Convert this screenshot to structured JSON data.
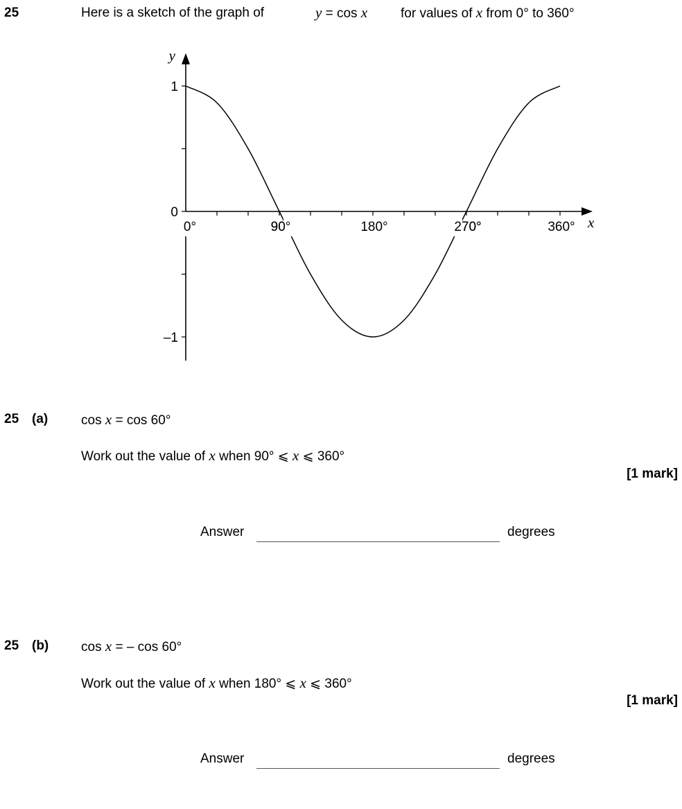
{
  "question": {
    "number": "25",
    "intro_text": "Here is a sketch of the graph of",
    "equation_lhs": "y",
    "equation_mid": " = cos ",
    "equation_var": "x",
    "range_text_pre": "for values of",
    "range_var": "x",
    "range_text_post": "from 0° to 360°"
  },
  "chart_data": {
    "type": "line",
    "function": "y = cos x",
    "x": [
      0,
      30,
      60,
      90,
      120,
      150,
      180,
      210,
      240,
      270,
      300,
      330,
      360
    ],
    "series": [
      {
        "values": [
          1,
          0.866,
          0.5,
          0,
          -0.5,
          -0.866,
          -1,
          -0.866,
          -0.5,
          0,
          0.5,
          0.866,
          1
        ]
      }
    ],
    "xlabel": "x",
    "ylabel": "y",
    "xlim": [
      0,
      390
    ],
    "ylim": [
      -1.2,
      1.25
    ],
    "x_tick_labels": [
      "0°",
      "90°",
      "180°",
      "270°",
      "360°"
    ],
    "y_tick_labels": [
      "1",
      "0",
      "–1"
    ],
    "grid": false
  },
  "part_a": {
    "label_number": "25",
    "label_part": "(a)",
    "equation_pre": "cos ",
    "equation_var": "x",
    "equation_post": " = cos 60°",
    "instruction_pre": "Work out the value of ",
    "instruction_var": "x",
    "instruction_mid": " when  90° ⩽ ",
    "instruction_var2": "x",
    "instruction_post": " ⩽ 360°",
    "marks": "[1 mark]",
    "answer_label": "Answer",
    "answer_unit": "degrees"
  },
  "part_b": {
    "label_number": "25",
    "label_part": "(b)",
    "equation_pre": "cos ",
    "equation_var": "x",
    "equation_post": " = – cos 60°",
    "instruction_pre": "Work out the value of ",
    "instruction_var": "x",
    "instruction_mid": " when  180° ⩽ ",
    "instruction_var2": "x",
    "instruction_post": " ⩽ 360°",
    "marks": "[1 mark]",
    "answer_label": "Answer",
    "answer_unit": "degrees"
  }
}
